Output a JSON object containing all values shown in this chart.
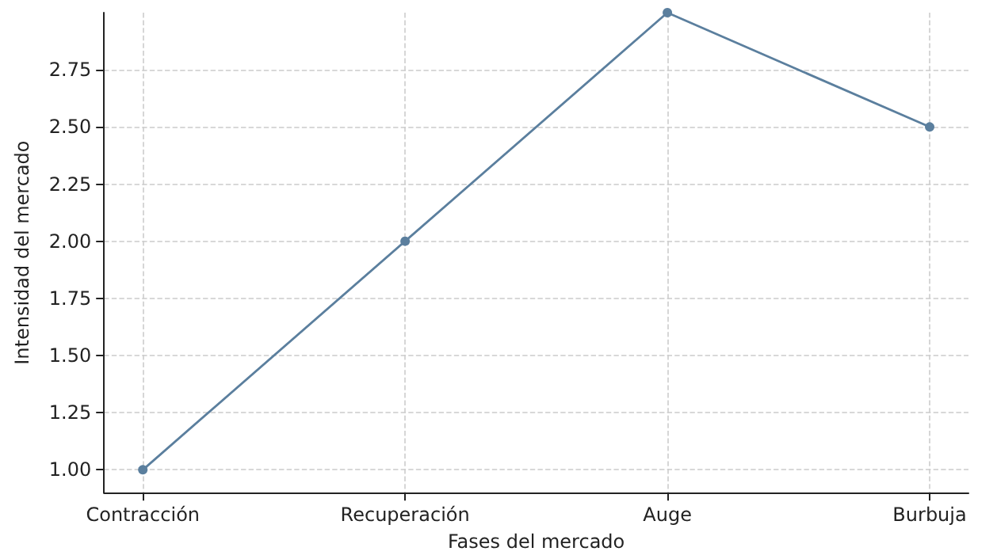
{
  "chart_data": {
    "type": "line",
    "xlabel": "Fases del mercado",
    "ylabel": "Intensidad del mercado",
    "categories": [
      "Contracción",
      "Recuperación",
      "Auge",
      "Burbuja"
    ],
    "series": [
      {
        "color": "#5b7f9e",
        "values": [
          1,
          2,
          3,
          2.5
        ]
      }
    ],
    "ylim": [
      0.9,
      3.0
    ],
    "yticks": [
      {
        "value": 1,
        "label": "1.00"
      },
      1.25,
      {
        "value": 1.5,
        "label": "1.50"
      },
      1.75,
      {
        "value": 2,
        "label": "2.00"
      },
      2.25,
      {
        "value": 2.5,
        "label": "2.50"
      },
      2.75
    ],
    "grid": true,
    "marker": "circle",
    "line_style": "solid"
  }
}
